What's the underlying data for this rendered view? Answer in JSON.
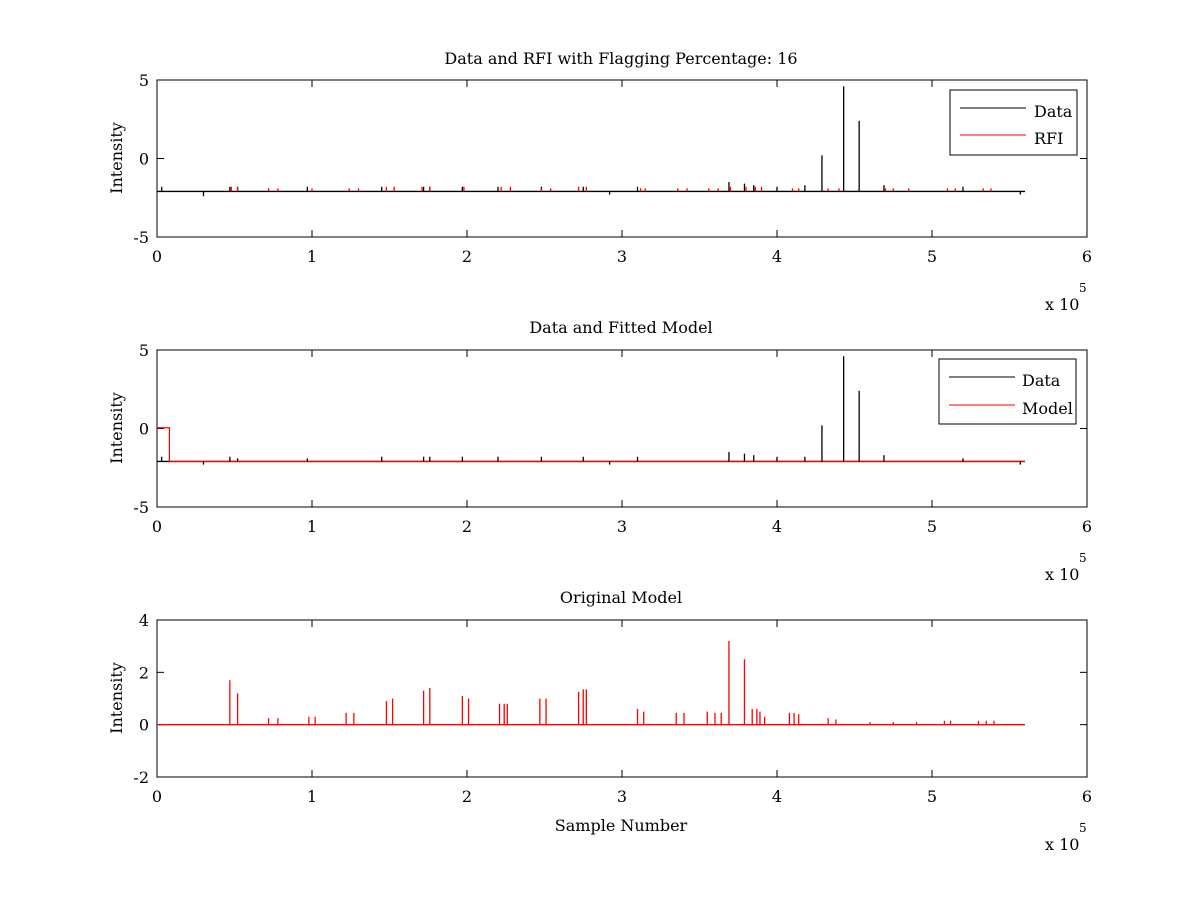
{
  "chart_data": [
    {
      "type": "line",
      "title": "Data and RFI with Flagging Percentage: 16",
      "xlabel": "",
      "ylabel": "Intensity",
      "xlim": [
        0,
        600000
      ],
      "ylim": [
        -5,
        5
      ],
      "xticks": [
        "0",
        "1",
        "2",
        "3",
        "4",
        "5",
        "6"
      ],
      "yticks": [
        "-5",
        "0",
        "5"
      ],
      "x_multiplier": {
        "base": "x 10",
        "exp": "5"
      },
      "grid": false,
      "legend_position": "top-right",
      "baseline": -2.1,
      "x_end": 560000,
      "series": [
        {
          "name": "Data",
          "color": "#000000",
          "spikes": [
            [
              3000,
              -1.8
            ],
            [
              30000,
              -2.4
            ],
            [
              47000,
              -1.8
            ],
            [
              52000,
              -1.8
            ],
            [
              97000,
              -1.8
            ],
            [
              145000,
              -1.8
            ],
            [
              172000,
              -1.8
            ],
            [
              176000,
              -1.8
            ],
            [
              197000,
              -1.8
            ],
            [
              220000,
              -1.8
            ],
            [
              248000,
              -1.8
            ],
            [
              275000,
              -1.8
            ],
            [
              292000,
              -2.3
            ],
            [
              310000,
              -1.8
            ],
            [
              369000,
              -1.5
            ],
            [
              379000,
              -1.6
            ],
            [
              385000,
              -1.7
            ],
            [
              400000,
              -1.8
            ],
            [
              418000,
              -1.7
            ],
            [
              429000,
              0.2
            ],
            [
              443000,
              4.6
            ],
            [
              453000,
              2.4
            ],
            [
              469000,
              -1.7
            ],
            [
              520000,
              -1.8
            ],
            [
              557000,
              -2.3
            ]
          ]
        },
        {
          "name": "RFI",
          "color": "#ff0000",
          "spikes": [
            [
              48000,
              -1.8
            ],
            [
              52000,
              -1.8
            ],
            [
              72000,
              -1.9
            ],
            [
              78000,
              -1.9
            ],
            [
              100000,
              -1.9
            ],
            [
              124000,
              -1.9
            ],
            [
              130000,
              -1.9
            ],
            [
              148000,
              -1.8
            ],
            [
              153000,
              -1.8
            ],
            [
              171000,
              -1.8
            ],
            [
              176000,
              -1.8
            ],
            [
              198000,
              -1.8
            ],
            [
              222000,
              -1.8
            ],
            [
              228000,
              -1.8
            ],
            [
              248000,
              -1.9
            ],
            [
              254000,
              -1.9
            ],
            [
              272000,
              -1.8
            ],
            [
              277000,
              -1.8
            ],
            [
              312000,
              -1.9
            ],
            [
              315000,
              -1.9
            ],
            [
              336000,
              -1.9
            ],
            [
              342000,
              -1.9
            ],
            [
              356000,
              -1.9
            ],
            [
              362000,
              -1.9
            ],
            [
              370000,
              -1.8
            ],
            [
              380000,
              -1.8
            ],
            [
              386000,
              -1.8
            ],
            [
              390000,
              -1.8
            ],
            [
              410000,
              -1.9
            ],
            [
              414000,
              -1.9
            ],
            [
              433000,
              -1.9
            ],
            [
              440000,
              -1.9
            ],
            [
              470000,
              -1.9
            ],
            [
              475000,
              -1.9
            ],
            [
              485000,
              -1.9
            ],
            [
              510000,
              -1.9
            ],
            [
              515000,
              -1.9
            ],
            [
              533000,
              -1.9
            ],
            [
              538000,
              -1.9
            ]
          ]
        }
      ]
    },
    {
      "type": "line",
      "title": "Data and Fitted Model",
      "xlabel": "",
      "ylabel": "Intensity",
      "xlim": [
        0,
        600000
      ],
      "ylim": [
        -5,
        5
      ],
      "xticks": [
        "0",
        "1",
        "2",
        "3",
        "4",
        "5",
        "6"
      ],
      "yticks": [
        "-5",
        "0",
        "5"
      ],
      "x_multiplier": {
        "base": "x 10",
        "exp": "5"
      },
      "grid": false,
      "legend_position": "top-right",
      "baseline": -2.1,
      "x_end": 560000,
      "model_step": {
        "x_end": 8000,
        "y": 0.05
      },
      "series": [
        {
          "name": "Data",
          "color": "#000000",
          "spikes": [
            [
              3000,
              -1.8
            ],
            [
              30000,
              -2.3
            ],
            [
              47000,
              -1.8
            ],
            [
              52000,
              -1.9
            ],
            [
              97000,
              -1.9
            ],
            [
              145000,
              -1.8
            ],
            [
              172000,
              -1.8
            ],
            [
              176000,
              -1.8
            ],
            [
              197000,
              -1.8
            ],
            [
              220000,
              -1.8
            ],
            [
              248000,
              -1.8
            ],
            [
              275000,
              -1.8
            ],
            [
              292000,
              -2.3
            ],
            [
              310000,
              -1.8
            ],
            [
              369000,
              -1.5
            ],
            [
              379000,
              -1.6
            ],
            [
              385000,
              -1.7
            ],
            [
              400000,
              -1.8
            ],
            [
              418000,
              -1.8
            ],
            [
              429000,
              0.2
            ],
            [
              443000,
              4.6
            ],
            [
              453000,
              2.4
            ],
            [
              469000,
              -1.7
            ],
            [
              520000,
              -1.9
            ],
            [
              557000,
              -2.3
            ]
          ]
        },
        {
          "name": "Model",
          "color": "#ff0000",
          "spikes": []
        }
      ]
    },
    {
      "type": "line",
      "title": "Original Model",
      "xlabel": "Sample Number",
      "ylabel": "Intensity",
      "xlim": [
        0,
        600000
      ],
      "ylim": [
        -2,
        4
      ],
      "xticks": [
        "0",
        "1",
        "2",
        "3",
        "4",
        "5",
        "6"
      ],
      "yticks": [
        "-2",
        "0",
        "2",
        "4"
      ],
      "x_multiplier": {
        "base": "x 10",
        "exp": "5"
      },
      "grid": false,
      "legend_position": "none",
      "baseline": 0,
      "x_end": 560000,
      "series": [
        {
          "name": "",
          "color": "#ff0000",
          "spikes": [
            [
              47000,
              1.7
            ],
            [
              52000,
              1.2
            ],
            [
              72000,
              0.25
            ],
            [
              78000,
              0.25
            ],
            [
              98000,
              0.3
            ],
            [
              102000,
              0.3
            ],
            [
              122000,
              0.45
            ],
            [
              127000,
              0.45
            ],
            [
              148000,
              0.9
            ],
            [
              152000,
              1.0
            ],
            [
              172000,
              1.3
            ],
            [
              176000,
              1.4
            ],
            [
              197000,
              1.1
            ],
            [
              201000,
              1.0
            ],
            [
              221000,
              0.8
            ],
            [
              224000,
              0.8
            ],
            [
              226000,
              0.8
            ],
            [
              247000,
              1.0
            ],
            [
              251000,
              1.0
            ],
            [
              272000,
              1.25
            ],
            [
              275000,
              1.35
            ],
            [
              277000,
              1.35
            ],
            [
              310000,
              0.6
            ],
            [
              314000,
              0.5
            ],
            [
              335000,
              0.45
            ],
            [
              340000,
              0.45
            ],
            [
              355000,
              0.5
            ],
            [
              360000,
              0.45
            ],
            [
              364000,
              0.45
            ],
            [
              369000,
              3.2
            ],
            [
              379000,
              2.5
            ],
            [
              384000,
              0.6
            ],
            [
              387000,
              0.6
            ],
            [
              389000,
              0.5
            ],
            [
              392000,
              0.3
            ],
            [
              408000,
              0.45
            ],
            [
              411000,
              0.45
            ],
            [
              414000,
              0.4
            ],
            [
              433000,
              0.25
            ],
            [
              438000,
              0.2
            ],
            [
              460000,
              0.1
            ],
            [
              475000,
              0.1
            ],
            [
              490000,
              0.1
            ],
            [
              508000,
              0.15
            ],
            [
              512000,
              0.15
            ],
            [
              530000,
              0.15
            ],
            [
              535000,
              0.15
            ],
            [
              540000,
              0.15
            ]
          ]
        }
      ]
    }
  ]
}
